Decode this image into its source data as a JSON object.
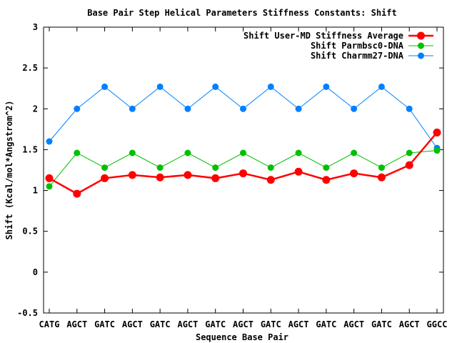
{
  "chart_data": {
    "type": "line",
    "title": "Base Pair Step Helical Parameters Stiffness Constants: Shift",
    "xlabel": "Sequence Base Pair",
    "ylabel": "Shift (Kcal/mol*Angstrom^2)",
    "categories": [
      "CATG",
      "AGCT",
      "GATC",
      "AGCT",
      "GATC",
      "AGCT",
      "GATC",
      "AGCT",
      "GATC",
      "AGCT",
      "GATC",
      "AGCT",
      "GATC",
      "AGCT",
      "GGCC"
    ],
    "ylim": [
      -0.5,
      3
    ],
    "yticks": [
      "-0.5",
      "0",
      "0.5",
      "1",
      "1.5",
      "2",
      "2.5",
      "3"
    ],
    "grid": false,
    "legend_position": "top-right",
    "series": [
      {
        "name": "Shift User-MD Stiffness Average",
        "color": "#ff0000",
        "values": [
          1.15,
          0.96,
          1.15,
          1.19,
          1.16,
          1.19,
          1.15,
          1.21,
          1.13,
          1.23,
          1.13,
          1.21,
          1.16,
          1.31,
          1.71
        ]
      },
      {
        "name": "Shift Parmbsc0-DNA",
        "color": "#00c000",
        "values": [
          1.05,
          1.46,
          1.28,
          1.46,
          1.28,
          1.46,
          1.28,
          1.46,
          1.28,
          1.46,
          1.28,
          1.46,
          1.28,
          1.46,
          1.49
        ]
      },
      {
        "name": "Shift Charmm27-DNA",
        "color": "#0080ff",
        "values": [
          1.6,
          2.0,
          2.27,
          2.0,
          2.27,
          2.0,
          2.27,
          2.0,
          2.27,
          2.0,
          2.27,
          2.0,
          2.27,
          2.0,
          1.52
        ]
      }
    ]
  }
}
